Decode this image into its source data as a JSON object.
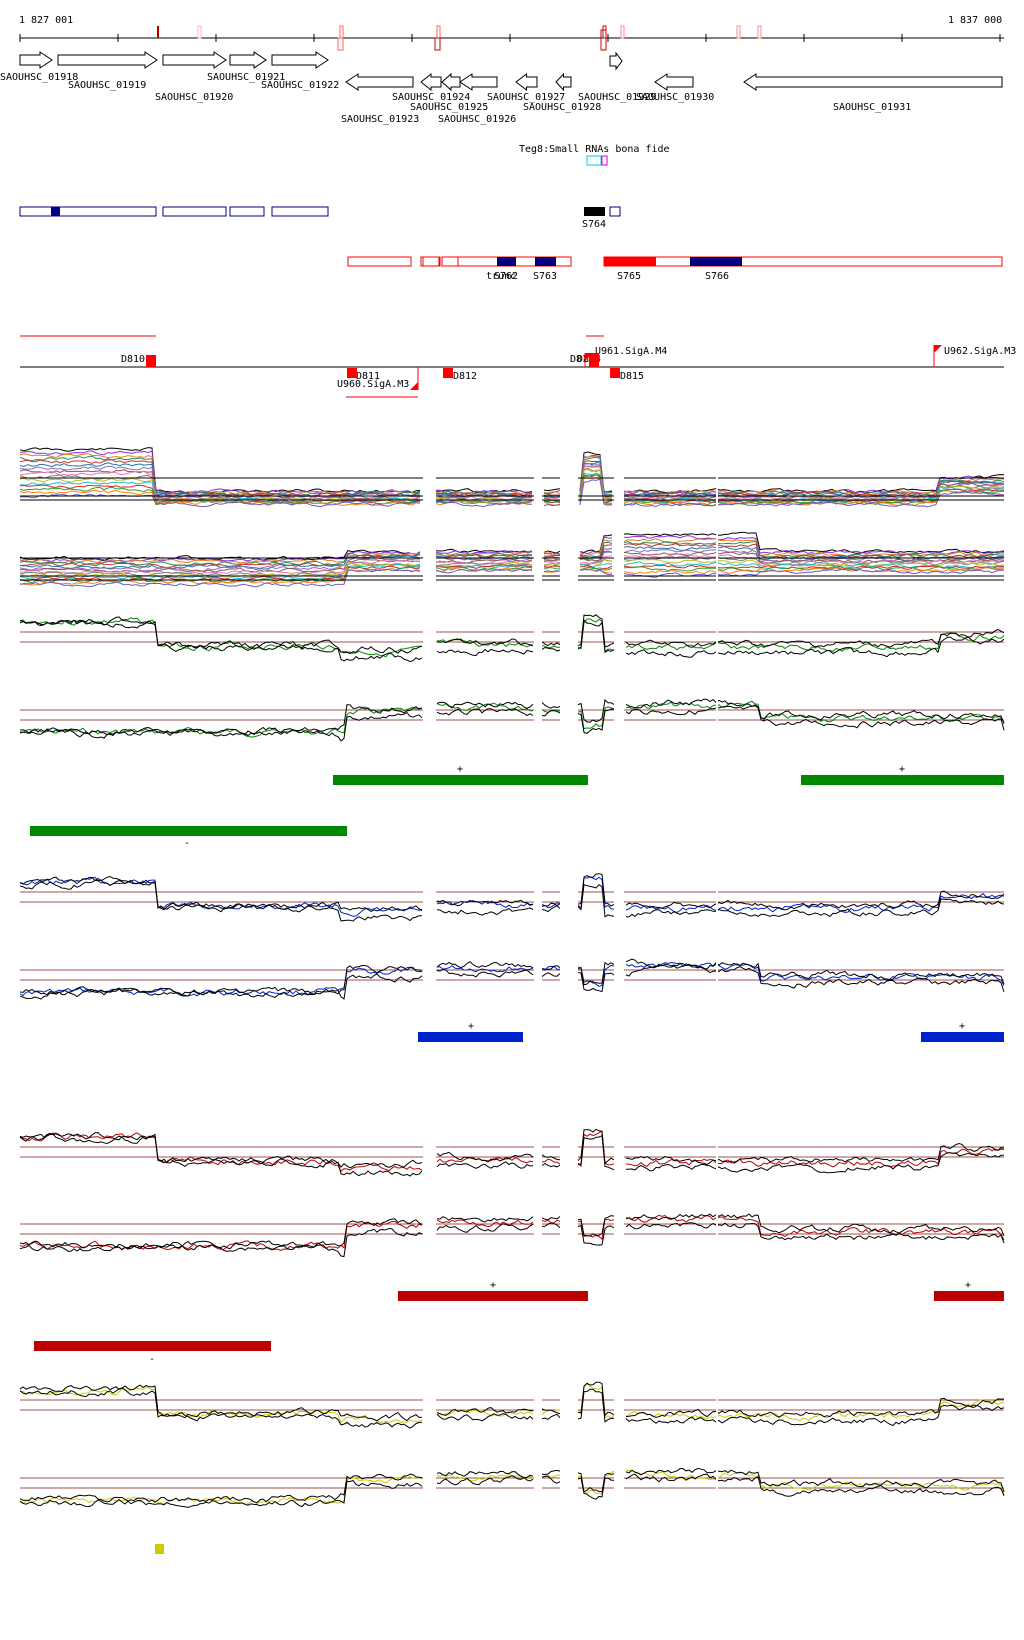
{
  "ruler": {
    "start_label": "1 827 001",
    "end_label": "1 837 000"
  },
  "genes": [
    {
      "name": "SAOUHSC_01918",
      "dir": "+"
    },
    {
      "name": "SAOUHSC_01919",
      "dir": "+"
    },
    {
      "name": "SAOUHSC_01920",
      "dir": "+"
    },
    {
      "name": "SAOUHSC_01921",
      "dir": "+"
    },
    {
      "name": "SAOUHSC_01922",
      "dir": "+"
    },
    {
      "name": "SAOUHSC_01923",
      "dir": "-"
    },
    {
      "name": "SAOUHSC_01924",
      "dir": "-"
    },
    {
      "name": "SAOUHSC_01925",
      "dir": "-"
    },
    {
      "name": "SAOUHSC_01926",
      "dir": "-"
    },
    {
      "name": "SAOUHSC_01927",
      "dir": "-"
    },
    {
      "name": "SAOUHSC_01928",
      "dir": "-"
    },
    {
      "name": "SAOUHSC_01929",
      "dir": "+"
    },
    {
      "name": "SAOUHSC_01930",
      "dir": "-"
    },
    {
      "name": "SAOUHSC_01931",
      "dir": "-"
    }
  ],
  "small_rna_track": {
    "label": "Teg8:Small RNAs bona fide"
  },
  "segments": [
    {
      "name": "S764"
    },
    {
      "name": "S762"
    },
    {
      "name": "S763"
    },
    {
      "name": "trunc"
    },
    {
      "name": "S765"
    },
    {
      "name": "S766"
    }
  ],
  "boundary_features": [
    {
      "name": "D810"
    },
    {
      "name": "D811"
    },
    {
      "name": "U960.SigA.M3"
    },
    {
      "name": "D812"
    },
    {
      "name": "D813"
    },
    {
      "name": "D814"
    },
    {
      "name": "U961.SigA.M4"
    },
    {
      "name": "D815"
    },
    {
      "name": "U962.SigA.M3"
    }
  ],
  "strand_marks": {
    "plus": "+",
    "minus": "-"
  },
  "colors": {
    "green": "#008800",
    "blue": "#0022cc",
    "red": "#bb0000",
    "yellow": "#cccc00",
    "navy": "#000080",
    "gene_outline": "#000000",
    "feature_red": "#ff0000"
  }
}
